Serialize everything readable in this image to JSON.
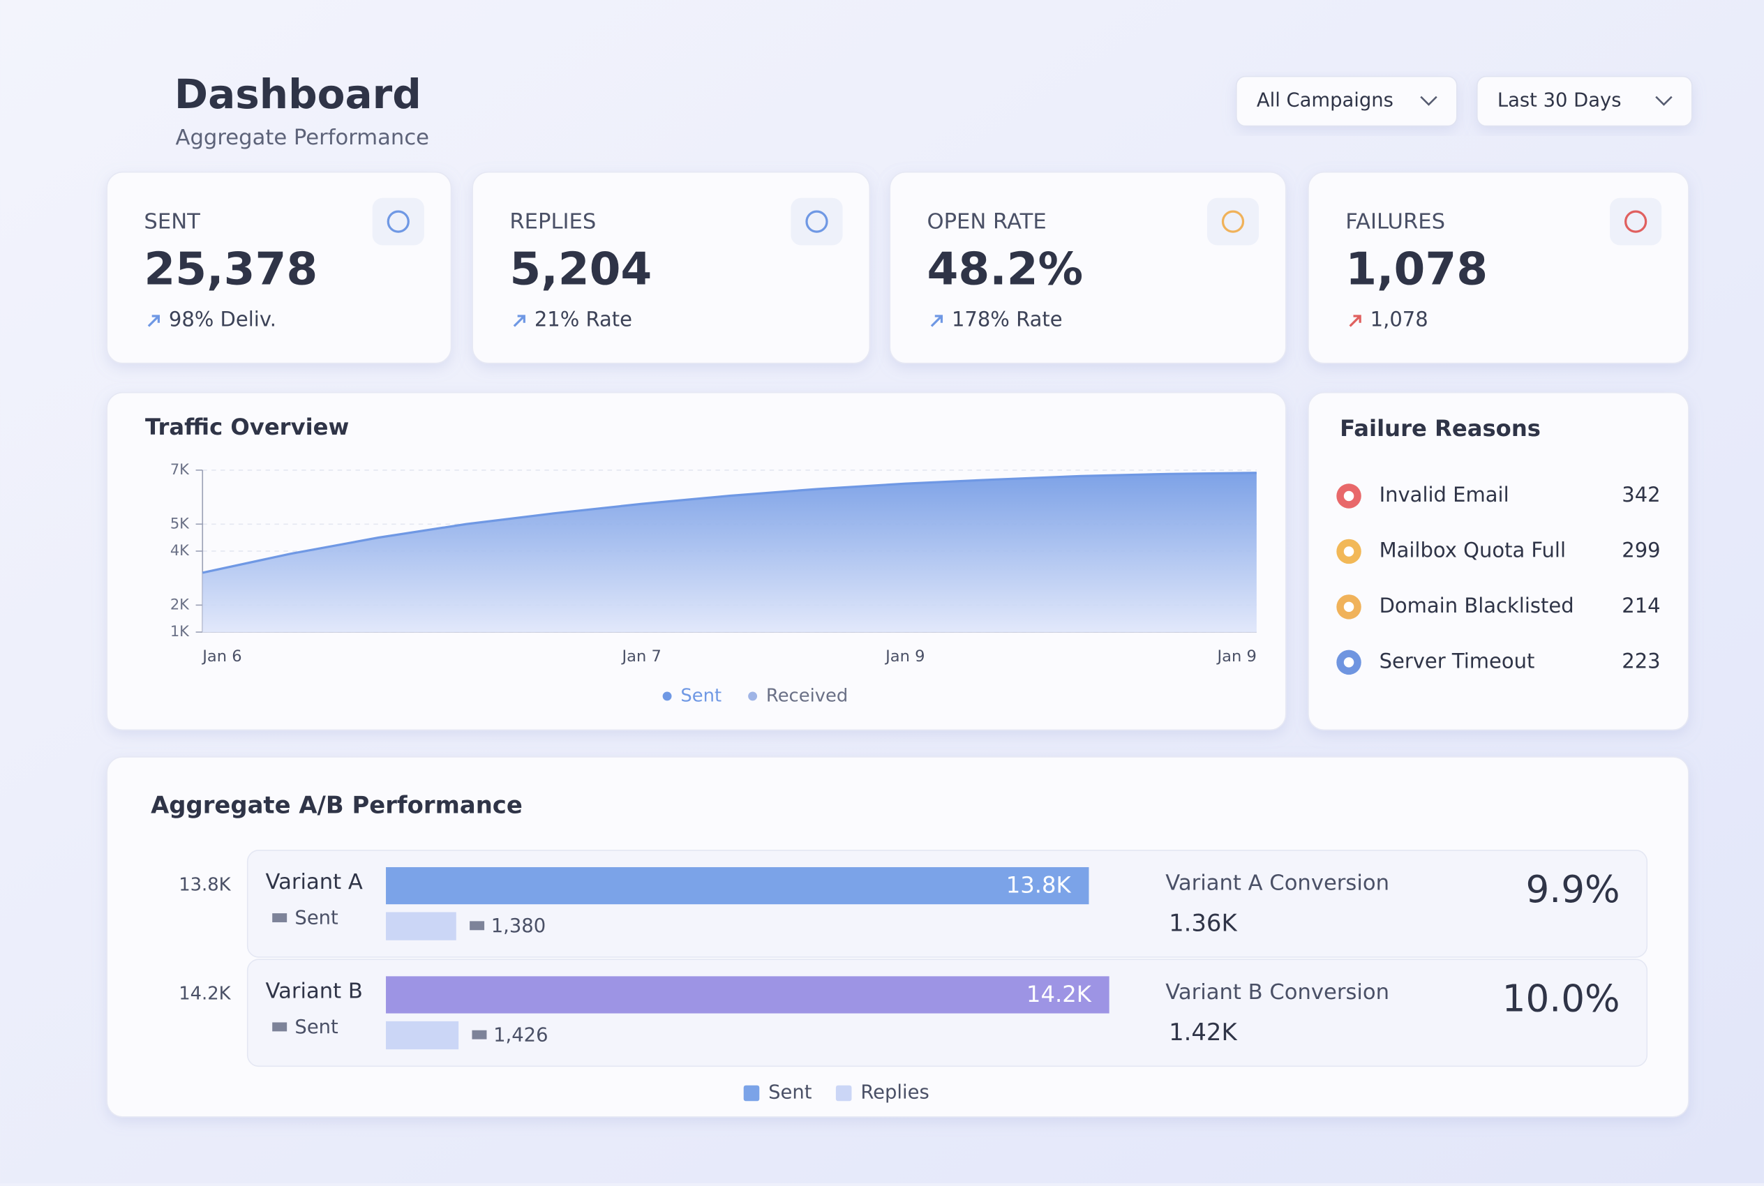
{
  "header": {
    "title": "Dashboard",
    "subtitle": "Aggregate Performance"
  },
  "filters": [
    "All Campaigns",
    "Last 30 Days"
  ],
  "kpis": [
    {
      "label": "SENT",
      "value": "25,378",
      "note": "98% Deliv."
    },
    {
      "label": "REPLIES",
      "value": "5,204",
      "note": "21% Rate"
    },
    {
      "label": "OPEN RATE",
      "value": "48.2%",
      "note": "178% Rate"
    },
    {
      "label": "FAILURES",
      "value": "1,078",
      "note": "1,078"
    }
  ],
  "failure_reasons": {
    "title": "Failure Reasons",
    "items": [
      {
        "label": "Invalid Email",
        "value": 342,
        "color": "#e8686a"
      },
      {
        "label": "Mailbox Quota Full",
        "value": 299,
        "color": "#f2b857"
      },
      {
        "label": "Domain Blacklisted",
        "value": 214,
        "color": "#f0b25a"
      },
      {
        "label": "Server Timeout",
        "value": 223,
        "color": "#6f95e0"
      }
    ]
  },
  "chart_data": [
    {
      "type": "area",
      "title": "Traffic Overview",
      "categories": [
        "Jan 6",
        null,
        null,
        null,
        null,
        "Jan 7",
        null,
        null,
        "Jan 9",
        null,
        null,
        null,
        "Jan 9"
      ],
      "series": [
        {
          "name": "Sent",
          "color": "#6f98e4",
          "values": [
            3200,
            3900,
            4500,
            5000,
            5400,
            5750,
            6050,
            6300,
            6500,
            6650,
            6780,
            6860,
            6900
          ]
        },
        {
          "name": "Received",
          "color": "#9fb4e6"
        }
      ],
      "ylim": [
        1000,
        7000
      ],
      "yticks": [
        {
          "value": 1000,
          "label": "1K"
        },
        {
          "value": 2000,
          "label": "2K"
        },
        {
          "value": 4000,
          "label": "4K"
        },
        {
          "value": 5000,
          "label": "5K"
        },
        {
          "value": 7000,
          "label": "7K"
        }
      ],
      "grid": true
    },
    {
      "type": "bar",
      "title": "Aggregate A/B Performance",
      "categories": [
        "Variant A",
        "Variant B"
      ],
      "series": [
        {
          "name": "Sent",
          "color": "#7ba3e8",
          "colors": [
            "#7ba3e8",
            "#9d94e4"
          ],
          "values": [
            13800,
            14200
          ],
          "value_labels": [
            "13.8K",
            "14.2K"
          ]
        },
        {
          "name": "Replies",
          "color": "#cbd6f6",
          "values": [
            1380,
            1426
          ],
          "value_labels": [
            "1,380",
            "1,426"
          ]
        }
      ],
      "xlim": [
        0,
        14200
      ]
    }
  ],
  "conversions": [
    {
      "label": "Variant A Conversion",
      "value": "1.36K",
      "rate": "9.9%"
    },
    {
      "label": "Variant B Conversion",
      "value": "1.42K",
      "rate": "10.0%"
    }
  ]
}
